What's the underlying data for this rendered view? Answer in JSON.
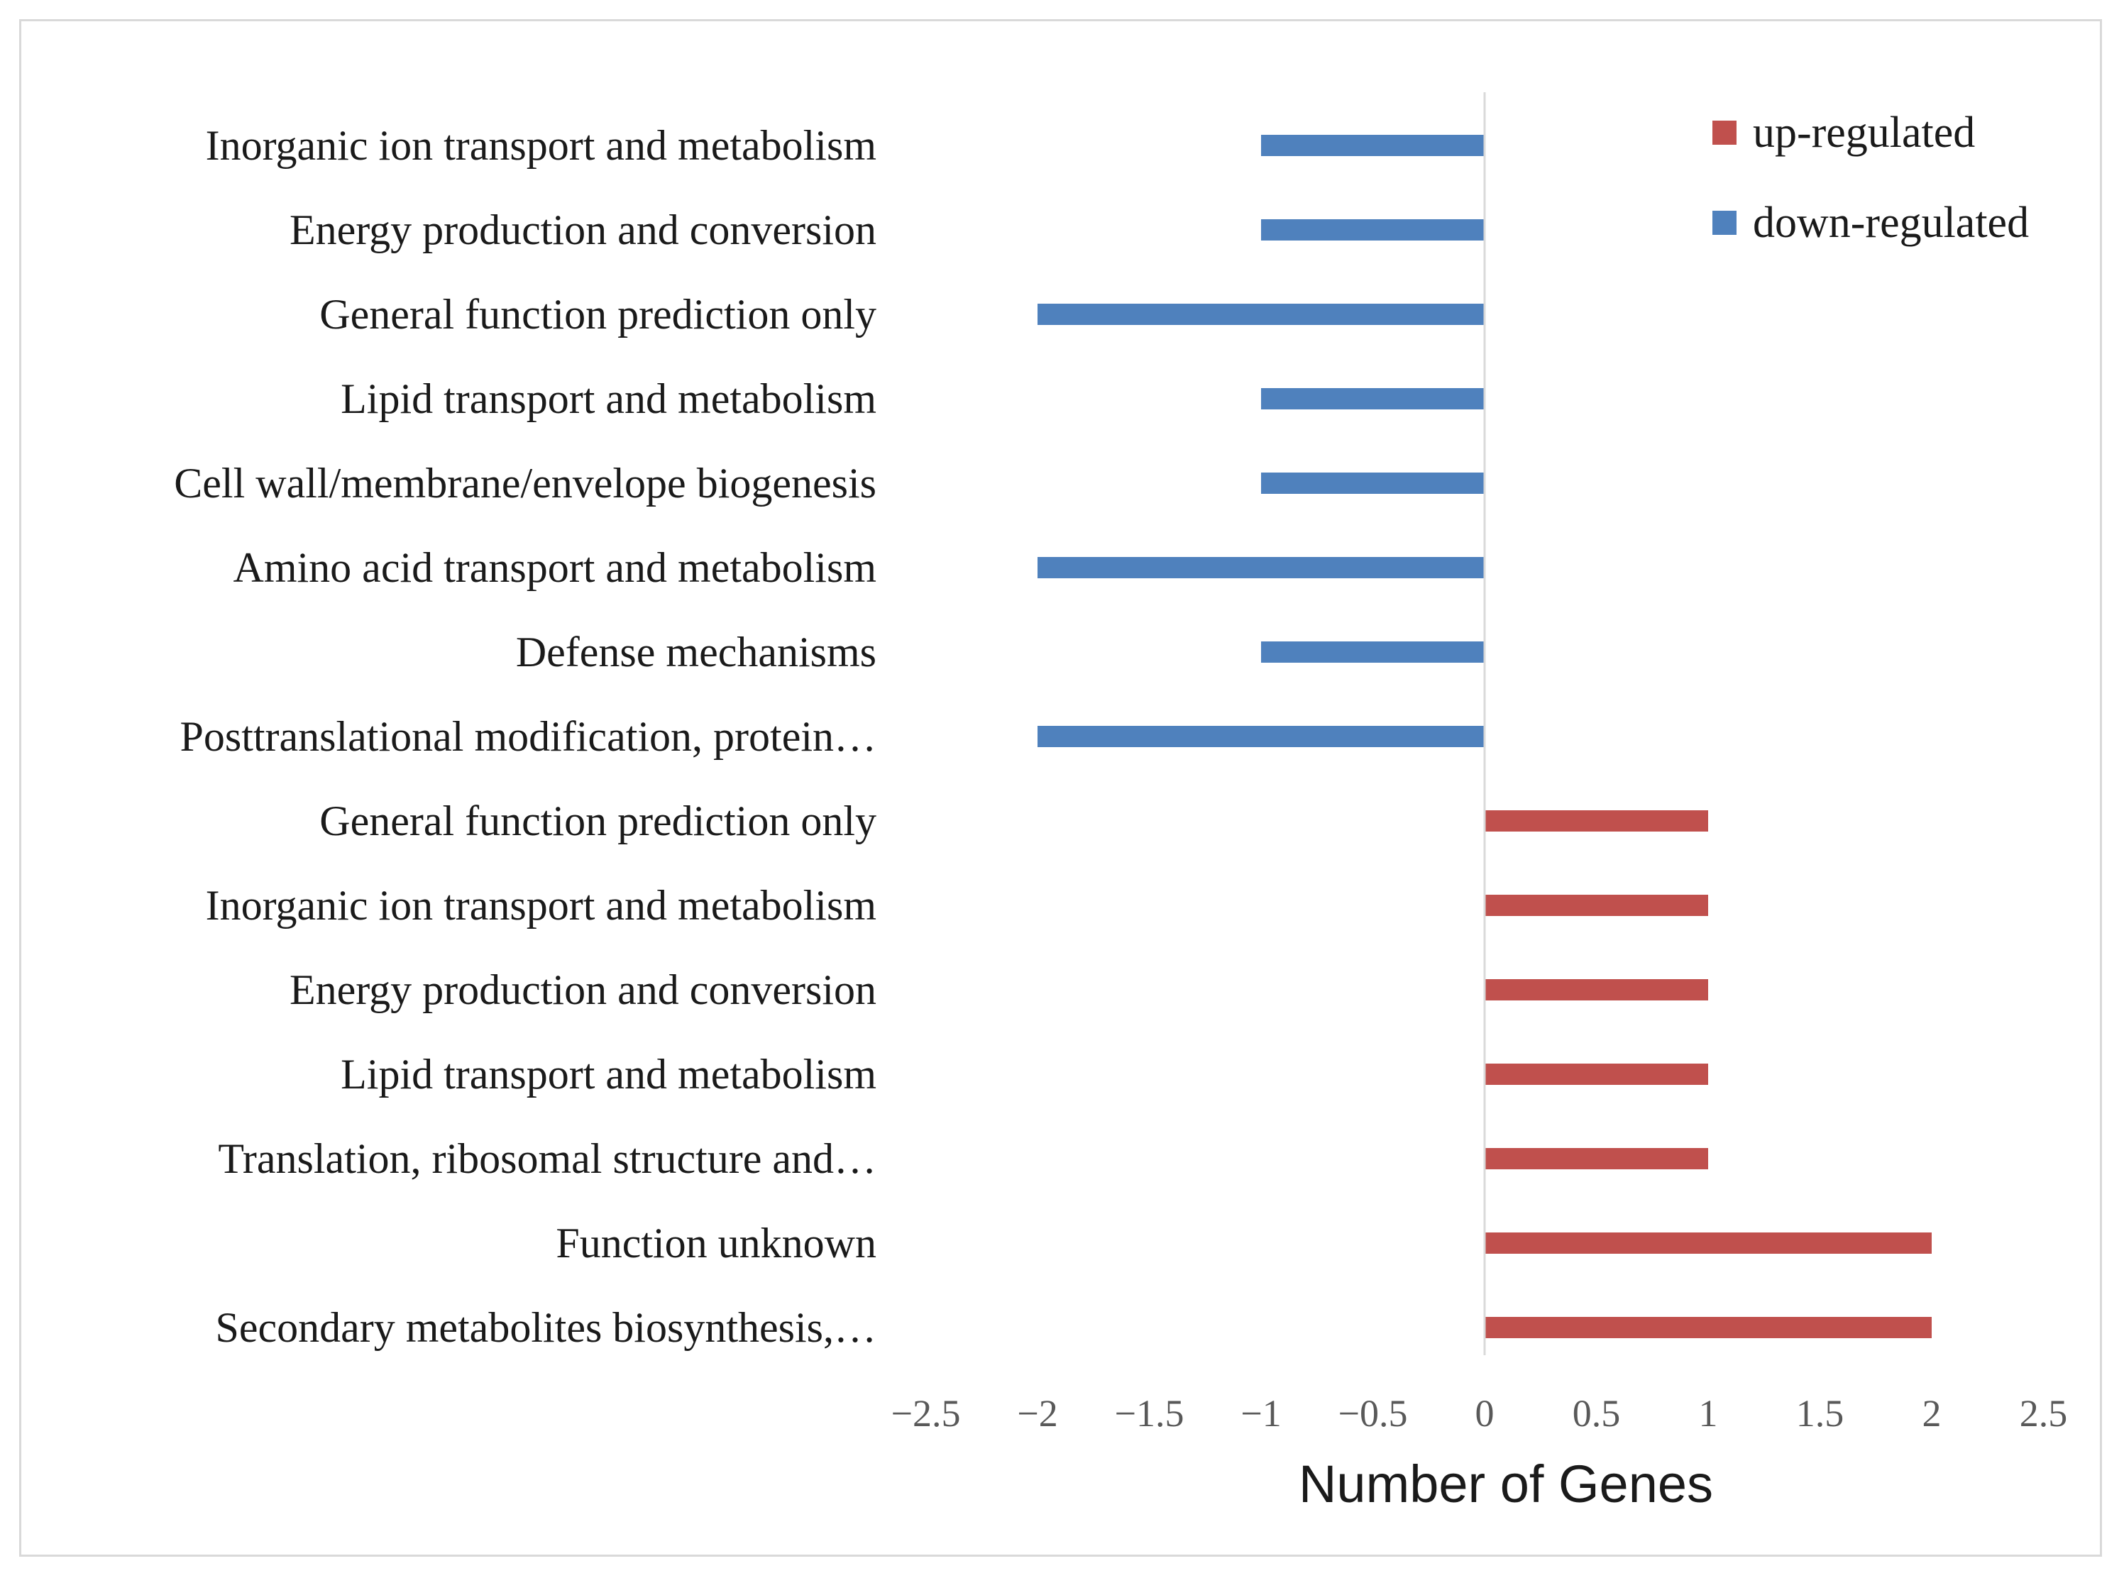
{
  "chart_data": {
    "type": "bar",
    "orientation": "horizontal",
    "xlabel": "Number of Genes",
    "ylabel": "",
    "xlim": [
      -2.5,
      2.5
    ],
    "x_ticks": [
      -2.5,
      -2,
      -1.5,
      -1,
      -0.5,
      0,
      0.5,
      1,
      1.5,
      2,
      2.5
    ],
    "x_tick_labels": [
      "−2.5",
      "−2",
      "−1.5",
      "−1",
      "−0.5",
      "0",
      "0.5",
      "1",
      "1.5",
      "2",
      "2.5"
    ],
    "grid": false,
    "legend_position": "top-right",
    "categories": [
      "Inorganic ion transport and metabolism",
      "Energy production and conversion",
      "General function prediction only",
      "Lipid transport and metabolism",
      "Cell wall/membrane/envelope biogenesis",
      "Amino acid transport and metabolism",
      "Defense mechanisms",
      "Posttranslational modification, protein…",
      "General function prediction only",
      "Inorganic ion transport and metabolism",
      "Energy production and conversion",
      "Lipid transport and metabolism",
      "Translation, ribosomal structure and…",
      "Function unknown",
      "Secondary metabolites biosynthesis,…"
    ],
    "series": [
      {
        "name": "up-regulated",
        "color": "#c0504d",
        "values": [
          null,
          null,
          null,
          null,
          null,
          null,
          null,
          null,
          1,
          1,
          1,
          1,
          1,
          2,
          2
        ]
      },
      {
        "name": "down-regulated",
        "color": "#4f81bd",
        "values": [
          -1,
          -1,
          -2,
          -1,
          -1,
          -2,
          -1,
          -2,
          null,
          null,
          null,
          null,
          null,
          null,
          null
        ]
      }
    ]
  }
}
